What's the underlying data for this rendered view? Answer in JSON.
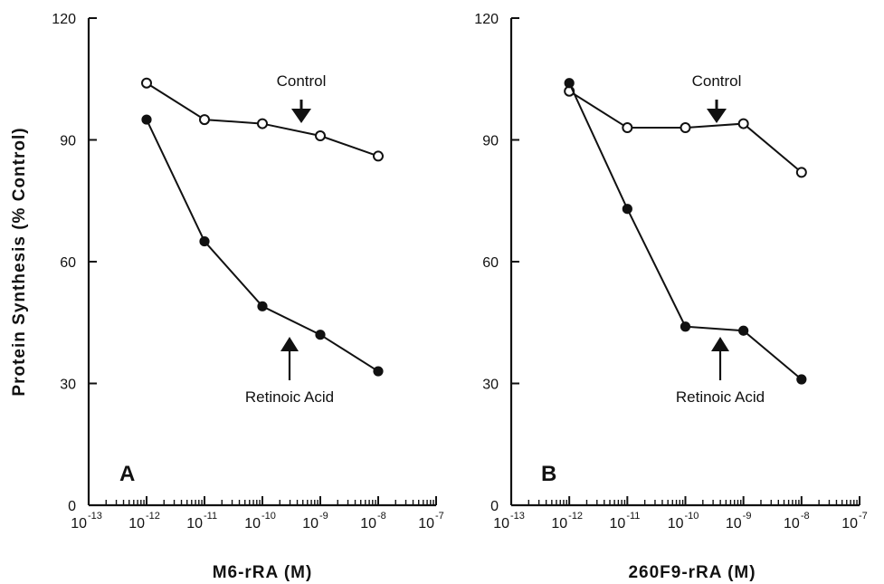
{
  "chart_data": [
    {
      "type": "line",
      "panel_label": "A",
      "xlabel": "M6-rRA     (M)",
      "ylabel": "Protein  Synthesis  (%  Control)",
      "x_scale": "log",
      "xlim": [
        1e-13,
        1e-07
      ],
      "ylim": [
        0,
        120
      ],
      "y_ticks": [
        "0",
        "30",
        "60",
        "90",
        "120"
      ],
      "x_ticks": [
        {
          "base": "10",
          "exp": "-13"
        },
        {
          "base": "10",
          "exp": "-12"
        },
        {
          "base": "10",
          "exp": "-11"
        },
        {
          "base": "10",
          "exp": "-10"
        },
        {
          "base": "10",
          "exp": "-9"
        },
        {
          "base": "10",
          "exp": "-8"
        },
        {
          "base": "10",
          "exp": "-7"
        }
      ],
      "grid": false,
      "series": [
        {
          "name": "Control",
          "marker": "open-circle",
          "x": [
            1e-12,
            1e-11,
            1e-10,
            1e-09,
            1e-08
          ],
          "y": [
            104,
            95,
            94,
            91,
            86
          ]
        },
        {
          "name": "Retinoic Acid",
          "marker": "filled-circle",
          "x": [
            1e-12,
            1e-11,
            1e-10,
            1e-09,
            1e-08
          ],
          "y": [
            95,
            65,
            49,
            42,
            33
          ]
        }
      ],
      "annotations": [
        {
          "text": "Control",
          "arrow": "down"
        },
        {
          "text": "Retinoic  Acid",
          "arrow": "up"
        }
      ]
    },
    {
      "type": "line",
      "panel_label": "B",
      "xlabel": "260F9-rRA     (M)",
      "ylabel": "",
      "x_scale": "log",
      "xlim": [
        1e-13,
        1e-07
      ],
      "ylim": [
        0,
        120
      ],
      "y_ticks": [
        "0",
        "30",
        "60",
        "90",
        "120"
      ],
      "x_ticks": [
        {
          "base": "10",
          "exp": "-13"
        },
        {
          "base": "10",
          "exp": "-12"
        },
        {
          "base": "10",
          "exp": "-11"
        },
        {
          "base": "10",
          "exp": "-10"
        },
        {
          "base": "10",
          "exp": "-9"
        },
        {
          "base": "10",
          "exp": "-8"
        },
        {
          "base": "10",
          "exp": "-7"
        }
      ],
      "grid": false,
      "series": [
        {
          "name": "Control",
          "marker": "open-circle",
          "x": [
            1e-12,
            1e-11,
            1e-10,
            1e-09,
            1e-08
          ],
          "y": [
            102,
            93,
            93,
            94,
            82
          ]
        },
        {
          "name": "Retinoic Acid",
          "marker": "filled-circle",
          "x": [
            1e-12,
            1e-11,
            1e-10,
            1e-09,
            1e-08
          ],
          "y": [
            104,
            73,
            44,
            43,
            31
          ]
        }
      ],
      "annotations": [
        {
          "text": "Control",
          "arrow": "down"
        },
        {
          "text": "Retinoic  Acid",
          "arrow": "up"
        }
      ]
    }
  ]
}
